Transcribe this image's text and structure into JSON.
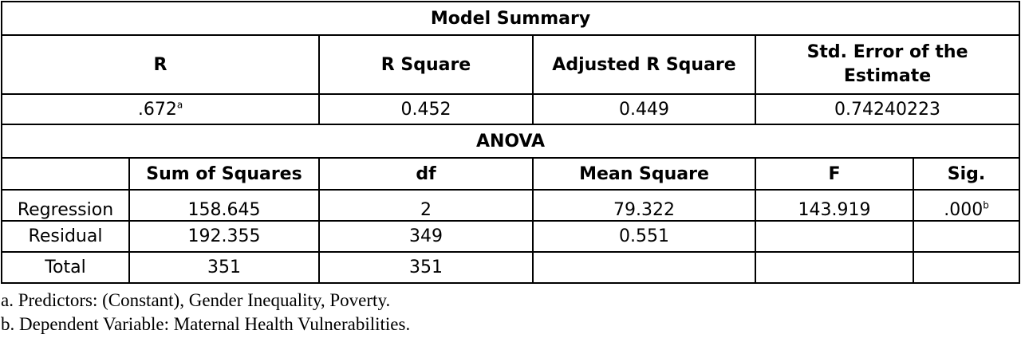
{
  "model_summary": {
    "title": "Model Summary",
    "headers": [
      "R",
      "R Square",
      "Adjusted R Square",
      "Std. Error of the Estimate"
    ],
    "values": {
      "r": ".672",
      "r_sup": "a",
      "r_square": "0.452",
      "adjusted_r_square": "0.449",
      "std_error": "0.74240223"
    }
  },
  "anova": {
    "title": "ANOVA",
    "headers": [
      "",
      "Sum of Squares",
      "df",
      "Mean Square",
      "F",
      "Sig."
    ],
    "rows": [
      {
        "label": "Regression",
        "sum_of_squares": "158.645",
        "df": "2",
        "mean_square": "79.322",
        "f": "143.919",
        "sig": ".000",
        "sig_sup": "b"
      },
      {
        "label": "Residual",
        "sum_of_squares": "192.355",
        "df": "349",
        "mean_square": "0.551",
        "f": "",
        "sig": "",
        "sig_sup": ""
      },
      {
        "label": "Total",
        "sum_of_squares": "351",
        "df": "351",
        "mean_square": "",
        "f": "",
        "sig": "",
        "sig_sup": ""
      }
    ]
  },
  "notes": [
    "a. Predictors: (Constant), Gender Inequality, Poverty.",
    "b. Dependent Variable: Maternal Health Vulnerabilities."
  ]
}
